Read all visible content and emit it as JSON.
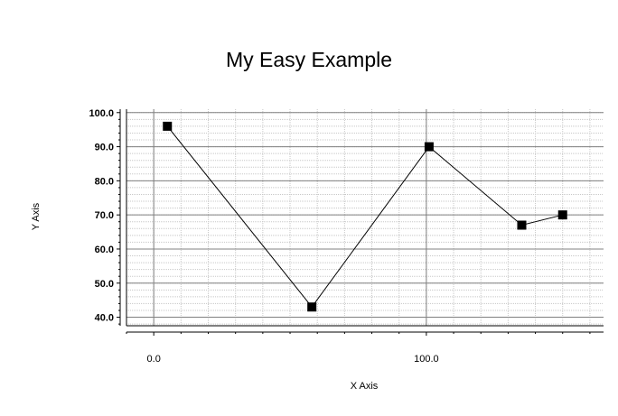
{
  "chart_data": {
    "type": "line",
    "title": "My Easy Example",
    "xlabel": "X Axis",
    "ylabel": "Y Axis",
    "xlim": [
      -10,
      165
    ],
    "ylim": [
      37.5,
      101
    ],
    "x_ticks": [
      0,
      100
    ],
    "x_tick_labels": [
      "0.0",
      "100.0"
    ],
    "x_minor_step": 10,
    "y_ticks": [
      40,
      50,
      60,
      70,
      80,
      90,
      100
    ],
    "y_tick_labels": [
      "40.0",
      "50.0",
      "60.0",
      "70.0",
      "80.0",
      "90.0",
      "100.0"
    ],
    "y_minor_step": 2,
    "grid": true,
    "marker": "square",
    "line_color": "#000000",
    "gridline_color": "#808080",
    "minor_grid_color": "#c8c8c8",
    "series": [
      {
        "x": [
          5,
          58,
          101,
          135,
          150
        ],
        "y": [
          96,
          43,
          90,
          67,
          70
        ]
      }
    ]
  }
}
